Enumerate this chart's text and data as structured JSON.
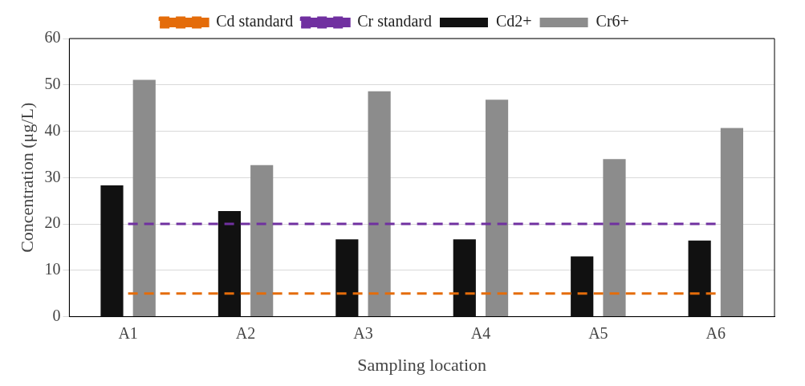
{
  "chart_data": {
    "type": "bar",
    "xlabel": "Sampling location",
    "ylabel": "Concentration (μg/L)",
    "categories": [
      "A1",
      "A2",
      "A3",
      "A4",
      "A5",
      "A6"
    ],
    "series": [
      {
        "name": "Cd2+",
        "color": "#111111",
        "values": [
          28.3,
          22.8,
          16.7,
          16.7,
          13,
          16.4
        ]
      },
      {
        "name": "Cr6+",
        "color": "#8c8c8c",
        "values": [
          51.1,
          32.7,
          48.6,
          46.8,
          34,
          40.7
        ]
      },
      {
        "name": "Cd standard",
        "type": "line",
        "color": "#e46c0a",
        "line_style": "dashed",
        "marker": "none",
        "values": [
          5,
          5,
          5,
          5,
          5,
          5
        ]
      },
      {
        "name": "Cr standard",
        "type": "line",
        "color": "#7030a0",
        "line_style": "dashed",
        "marker": "none",
        "values": [
          20,
          20,
          20,
          20,
          20,
          20
        ]
      }
    ],
    "ylim": [
      0,
      60
    ],
    "yticks": [
      0,
      10,
      20,
      30,
      40,
      50,
      60
    ],
    "grid": "y",
    "legend": "top"
  }
}
